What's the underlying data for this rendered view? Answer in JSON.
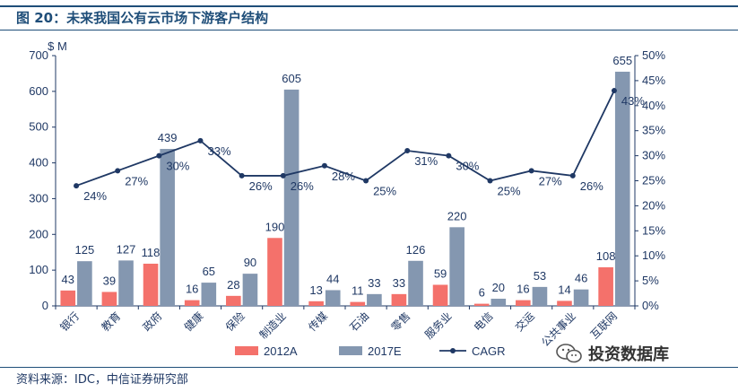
{
  "title": "图 20：未来我国公有云市场下游客户结构",
  "source": "资料来源：IDC，中信证券研究部",
  "watermark": "投资数据库",
  "colors": {
    "series_a": "#f4716b",
    "series_b": "#8497b0",
    "line": "#1f3864",
    "text": "#1f3864",
    "rule": "#1f4e79"
  },
  "chart_data": {
    "type": "bar",
    "title": "",
    "ylabel": "$ M",
    "ylim": [
      0,
      700
    ],
    "y_ticks": [
      0,
      100,
      200,
      300,
      400,
      500,
      600,
      700
    ],
    "y2lim": [
      0,
      50
    ],
    "y2_ticks": [
      "0%",
      "5%",
      "10%",
      "15%",
      "20%",
      "25%",
      "30%",
      "35%",
      "40%",
      "45%",
      "50%"
    ],
    "categories": [
      "银行",
      "教育",
      "政府",
      "健康",
      "保险",
      "制造业",
      "传媒",
      "石油",
      "零售",
      "服务业",
      "电信",
      "交运",
      "公共事业",
      "互联网"
    ],
    "series": [
      {
        "name": "2012A",
        "kind": "bar",
        "values": [
          43,
          39,
          118,
          16,
          28,
          190,
          13,
          11,
          33,
          59,
          6,
          16,
          14,
          108
        ]
      },
      {
        "name": "2017E",
        "kind": "bar",
        "values": [
          125,
          127,
          439,
          65,
          90,
          605,
          44,
          33,
          126,
          220,
          20,
          53,
          46,
          655
        ]
      },
      {
        "name": "CAGR",
        "kind": "line",
        "axis": "right",
        "values": [
          24,
          27,
          30,
          33,
          26,
          26,
          28,
          25,
          31,
          30,
          25,
          27,
          26,
          43
        ],
        "labels": [
          "24%",
          "27%",
          "30%",
          "33%",
          "26%",
          "26%",
          "28%",
          "25%",
          "31%",
          "30%",
          "25%",
          "27%",
          "26%",
          "43%"
        ]
      }
    ],
    "legend": {
      "position": "bottom",
      "entries": [
        "2012A",
        "2017E",
        "CAGR"
      ]
    },
    "grid": false
  }
}
